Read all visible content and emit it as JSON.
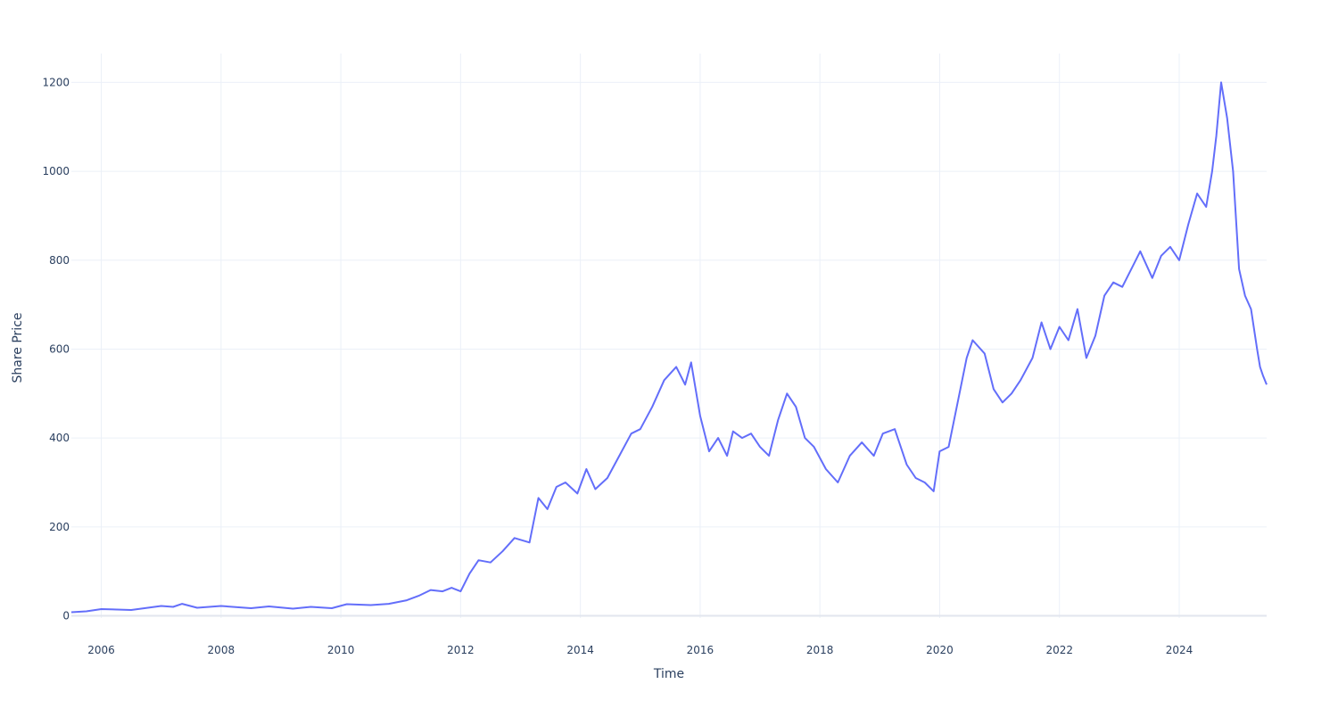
{
  "chart_data": {
    "type": "line",
    "title": "",
    "xlabel": "Time",
    "ylabel": "Share Price",
    "xlim": [
      2005.5,
      2025.46
    ],
    "ylim": [
      -5,
      1265
    ],
    "x_ticks": [
      "2006",
      "2008",
      "2010",
      "2012",
      "2014",
      "2016",
      "2018",
      "2020",
      "2022",
      "2024"
    ],
    "y_ticks": [
      "0",
      "200",
      "400",
      "600",
      "800",
      "1000",
      "1200"
    ],
    "grid": true,
    "legend": "none",
    "series": [
      {
        "color": "#636efa",
        "x": [
          2005.5,
          2005.75,
          2006.0,
          2006.5,
          2007.0,
          2007.2,
          2007.35,
          2007.6,
          2008.0,
          2008.5,
          2008.8,
          2009.2,
          2009.5,
          2009.85,
          2010.1,
          2010.5,
          2010.8,
          2011.1,
          2011.3,
          2011.5,
          2011.7,
          2011.85,
          2012.0,
          2012.15,
          2012.3,
          2012.5,
          2012.7,
          2012.9,
          2013.15,
          2013.3,
          2013.45,
          2013.6,
          2013.75,
          2013.95,
          2014.1,
          2014.25,
          2014.45,
          2014.65,
          2014.85,
          2015.0,
          2015.2,
          2015.4,
          2015.6,
          2015.75,
          2015.85,
          2016.0,
          2016.15,
          2016.3,
          2016.45,
          2016.55,
          2016.7,
          2016.85,
          2017.0,
          2017.15,
          2017.3,
          2017.45,
          2017.6,
          2017.75,
          2017.9,
          2018.1,
          2018.3,
          2018.5,
          2018.7,
          2018.9,
          2019.05,
          2019.25,
          2019.45,
          2019.6,
          2019.75,
          2019.9,
          2020.0,
          2020.15,
          2020.3,
          2020.45,
          2020.55,
          2020.75,
          2020.9,
          2021.05,
          2021.2,
          2021.35,
          2021.55,
          2021.7,
          2021.85,
          2022.0,
          2022.15,
          2022.3,
          2022.45,
          2022.6,
          2022.75,
          2022.9,
          2023.05,
          2023.2,
          2023.35,
          2023.55,
          2023.7,
          2023.85,
          2024.0,
          2024.15,
          2024.3,
          2024.45,
          2024.55,
          2024.62,
          2024.7,
          2024.8,
          2024.9,
          2025.0,
          2025.1,
          2025.2,
          2025.3,
          2025.35,
          2025.4,
          2025.46
        ],
        "y": [
          8,
          10,
          15,
          13,
          22,
          20,
          27,
          18,
          22,
          17,
          21,
          16,
          20,
          17,
          26,
          24,
          27,
          35,
          45,
          58,
          55,
          63,
          55,
          95,
          125,
          120,
          145,
          175,
          165,
          265,
          240,
          290,
          300,
          275,
          330,
          285,
          310,
          360,
          410,
          420,
          470,
          530,
          560,
          520,
          570,
          450,
          370,
          400,
          360,
          415,
          400,
          410,
          380,
          360,
          440,
          500,
          470,
          400,
          380,
          330,
          300,
          360,
          390,
          360,
          410,
          420,
          340,
          310,
          300,
          280,
          370,
          380,
          480,
          580,
          620,
          590,
          510,
          480,
          500,
          530,
          580,
          660,
          600,
          650,
          620,
          690,
          580,
          630,
          720,
          750,
          740,
          780,
          820,
          760,
          810,
          830,
          800,
          880,
          950,
          920,
          1000,
          1080,
          1200,
          1120,
          1000,
          780,
          720,
          690,
          600,
          560,
          540,
          520
        ]
      }
    ]
  }
}
